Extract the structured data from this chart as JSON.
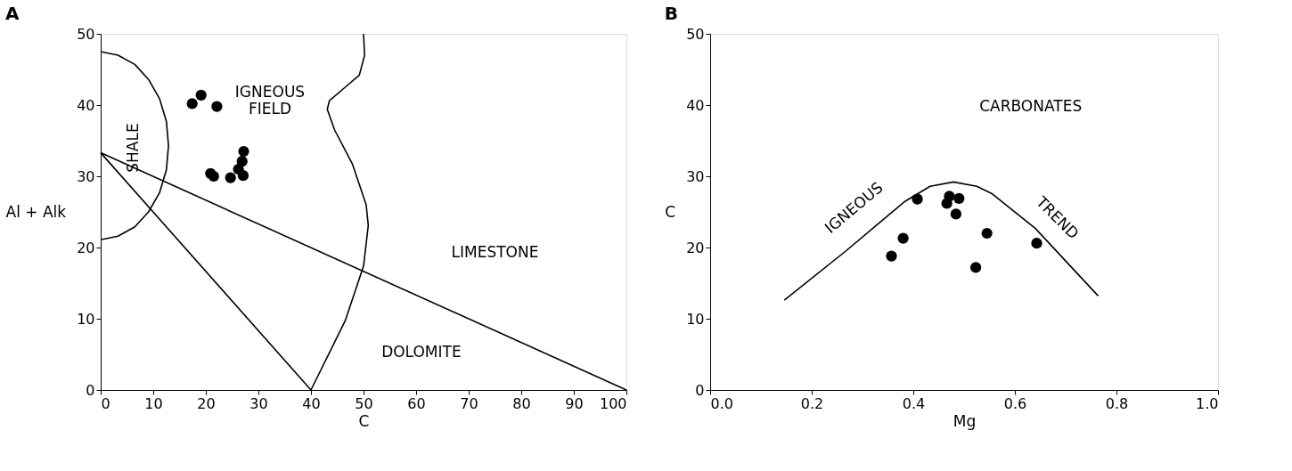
{
  "chart_data": [
    {
      "type": "scatter",
      "title": "A",
      "xlabel": "C",
      "ylabel": "Al + Alk",
      "xlim": [
        0,
        100
      ],
      "ylim": [
        0,
        50
      ],
      "xticks": [
        0,
        10,
        20,
        30,
        40,
        50,
        60,
        70,
        80,
        90,
        100
      ],
      "yticks": [
        0,
        10,
        20,
        30,
        40,
        50
      ],
      "grid": false,
      "series": [
        {
          "color": "#000000",
          "marker": "circle",
          "x": [
            17.4,
            19.1,
            22.1,
            27.2,
            26.9,
            26.2,
            27.1,
            24.7,
            20.9,
            21.5
          ],
          "values": [
            40.2,
            41.4,
            39.8,
            33.5,
            32.1,
            31.0,
            30.1,
            29.8,
            30.4,
            30.0
          ]
        },
        {
          "type": "line",
          "color": "#000000",
          "line_style": "solid",
          "x": [
            0,
            100
          ],
          "values": [
            33.3,
            0
          ]
        },
        {
          "type": "line",
          "color": "#000000",
          "line_style": "solid",
          "x": [
            0,
            40
          ],
          "values": [
            33.3,
            0
          ]
        },
        {
          "type": "line",
          "color": "#000000",
          "line_style": "solid",
          "x": [
            0,
            3.3,
            6.5,
            9.1,
            11.2,
            12.5,
            12.9,
            12.5,
            11.2,
            9.1,
            6.5,
            3.3,
            0
          ],
          "values": [
            47.5,
            47.0,
            45.7,
            43.6,
            40.9,
            37.7,
            34.3,
            30.9,
            27.7,
            25.0,
            22.9,
            21.6,
            21.1
          ]
        },
        {
          "type": "line",
          "color": "#000000",
          "line_style": "solid",
          "x": [
            50,
            50.2,
            49.2,
            46.5,
            43.5,
            43.1,
            44.5,
            47.9,
            50.5,
            50.9,
            50,
            46.5,
            40
          ],
          "values": [
            50,
            47,
            44.2,
            42.5,
            40.6,
            39.4,
            36.5,
            31.7,
            26,
            23.1,
            17.4,
            9.7,
            0
          ]
        }
      ],
      "annotations": [
        "IGNEOUS\nFIELD",
        "SHALE",
        "LIMESTONE",
        "DOLOMITE"
      ]
    },
    {
      "type": "scatter",
      "title": "B",
      "xlabel": "Mg",
      "ylabel": "C",
      "xlim": [
        0,
        1
      ],
      "ylim": [
        0,
        50
      ],
      "xticks": [
        {
          "value": 0,
          "label": "0.0"
        },
        0.2,
        0.4,
        0.6,
        0.8,
        {
          "value": 1,
          "label": "1.0"
        }
      ],
      "yticks": [
        0,
        10,
        20,
        30,
        40,
        50
      ],
      "grid": false,
      "series": [
        {
          "color": "#000000",
          "marker": "circle",
          "x": [
            0.408,
            0.38,
            0.357,
            0.471,
            0.466,
            0.49,
            0.484,
            0.545,
            0.523,
            0.643
          ],
          "values": [
            26.8,
            21.3,
            18.8,
            27.2,
            26.2,
            26.9,
            24.7,
            22.0,
            17.2,
            20.6
          ]
        },
        {
          "type": "line",
          "color": "#000000",
          "line_style": "solid",
          "x": [
            0.146,
            0.267,
            0.382,
            0.433,
            0.479,
            0.525,
            0.554,
            0.64,
            0.764
          ],
          "values": [
            12.6,
            19.5,
            26.4,
            28.6,
            29.2,
            28.6,
            27.6,
            22.7,
            13.2
          ]
        }
      ],
      "annotations": [
        "IGNEOUS",
        "TREND",
        "CARBONATES"
      ]
    }
  ]
}
